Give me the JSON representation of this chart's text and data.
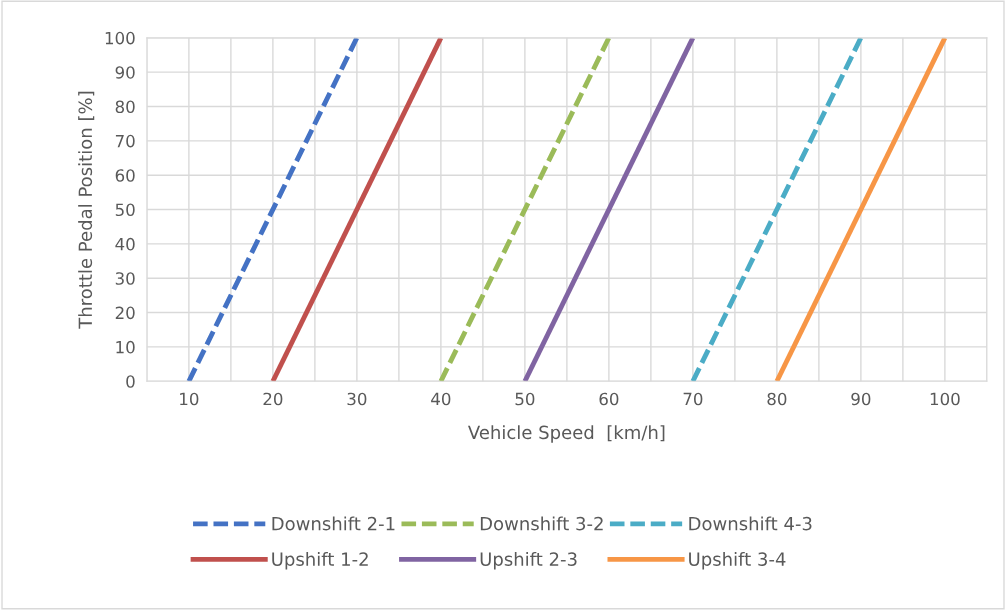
{
  "chart_data": {
    "type": "line",
    "xlabel": "Vehicle Speed  [km/h]",
    "ylabel": "Throttle Pedal Position [%]",
    "xlim": [
      5,
      105
    ],
    "xticks": [
      {
        "value": 5,
        "label": null
      },
      10,
      {
        "value": 15,
        "label": null
      },
      20,
      {
        "value": 25,
        "label": null
      },
      30,
      {
        "value": 35,
        "label": null
      },
      40,
      {
        "value": 45,
        "label": null
      },
      50,
      {
        "value": 55,
        "label": null
      },
      60,
      {
        "value": 65,
        "label": null
      },
      70,
      {
        "value": 75,
        "label": null
      },
      80,
      {
        "value": 85,
        "label": null
      },
      90,
      {
        "value": 95,
        "label": null
      },
      100,
      {
        "value": 105,
        "label": null
      }
    ],
    "ylim": [
      0,
      100
    ],
    "yticks": [
      0,
      10,
      20,
      30,
      40,
      50,
      60,
      70,
      80,
      90,
      100
    ],
    "grid": true,
    "legend": "bottom",
    "marker": "none",
    "series": [
      {
        "name": "Downshift 2-1",
        "color": "#4472c4",
        "line_style": "dashed",
        "x": [
          10,
          30
        ],
        "values": [
          0,
          100
        ]
      },
      {
        "name": "Upshift 1-2",
        "color": "#c0504d",
        "line_style": "solid",
        "x": [
          20,
          40
        ],
        "values": [
          0,
          100
        ]
      },
      {
        "name": "Downshift 3-2",
        "color": "#9bbb59",
        "line_style": "dashed",
        "x": [
          40,
          60
        ],
        "values": [
          0,
          100
        ]
      },
      {
        "name": "Upshift 2-3",
        "color": "#8064a2",
        "line_style": "solid",
        "x": [
          50,
          70
        ],
        "values": [
          0,
          100
        ]
      },
      {
        "name": "Downshift 4-3",
        "color": "#4bacc6",
        "line_style": "dashed",
        "x": [
          70,
          90
        ],
        "values": [
          0,
          100
        ]
      },
      {
        "name": "Upshift 3-4",
        "color": "#f79646",
        "line_style": "solid",
        "x": [
          80,
          100
        ],
        "values": [
          0,
          100
        ]
      }
    ]
  }
}
